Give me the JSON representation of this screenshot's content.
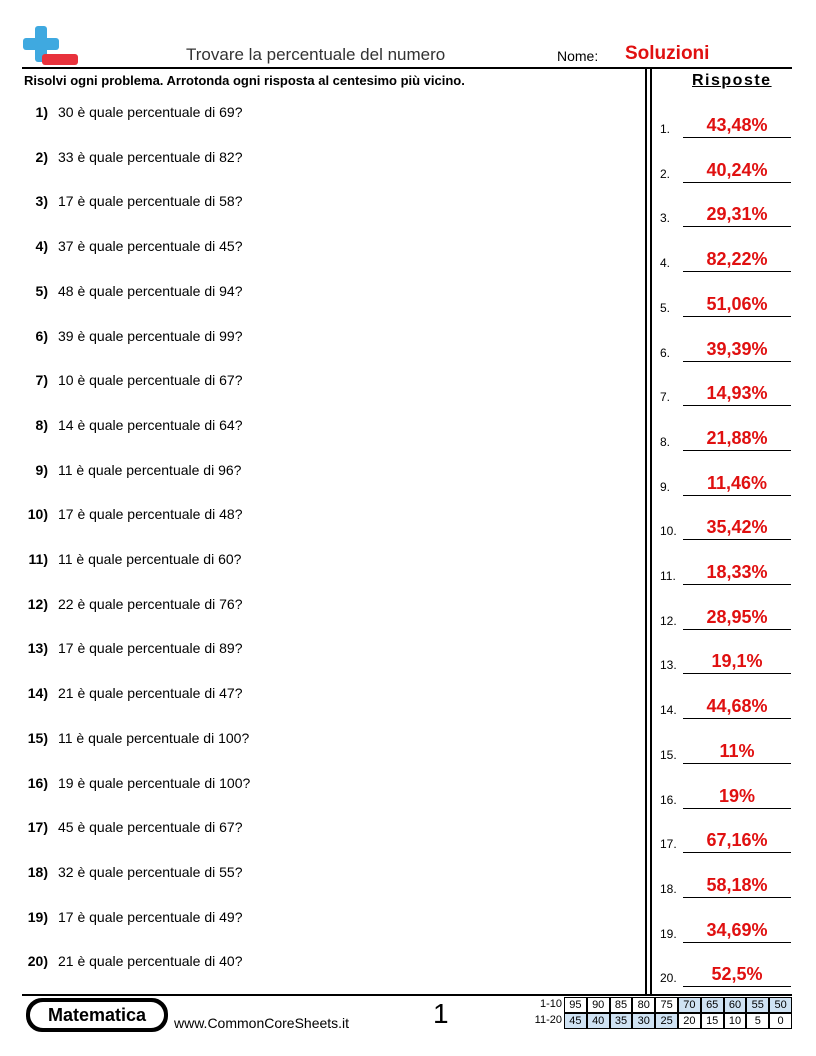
{
  "header": {
    "title": "Trovare la percentuale del numero",
    "name_label": "Nome:",
    "name_value": "Soluzioni"
  },
  "instructions": "Risolvi ogni problema. Arrotonda ogni risposta al centesimo più vicino.",
  "answers_title": "Risposte",
  "problems": [
    {
      "number": "1)",
      "text": "30 è quale percentuale di 69?"
    },
    {
      "number": "2)",
      "text": "33 è quale percentuale di 82?"
    },
    {
      "number": "3)",
      "text": "17 è quale percentuale di 58?"
    },
    {
      "number": "4)",
      "text": "37 è quale percentuale di 45?"
    },
    {
      "number": "5)",
      "text": "48 è quale percentuale di 94?"
    },
    {
      "number": "6)",
      "text": "39 è quale percentuale di 99?"
    },
    {
      "number": "7)",
      "text": "10 è quale percentuale di 67?"
    },
    {
      "number": "8)",
      "text": "14 è quale percentuale di 64?"
    },
    {
      "number": "9)",
      "text": "11 è quale percentuale di 96?"
    },
    {
      "number": "10)",
      "text": "17 è quale percentuale di 48?"
    },
    {
      "number": "11)",
      "text": "11 è quale percentuale di 60?"
    },
    {
      "number": "12)",
      "text": "22 è quale percentuale di 76?"
    },
    {
      "number": "13)",
      "text": "17 è quale percentuale di 89?"
    },
    {
      "number": "14)",
      "text": "21 è quale percentuale di 47?"
    },
    {
      "number": "15)",
      "text": "11 è quale percentuale di 100?"
    },
    {
      "number": "16)",
      "text": "19 è quale percentuale di 100?"
    },
    {
      "number": "17)",
      "text": "45 è quale percentuale di 67?"
    },
    {
      "number": "18)",
      "text": "32 è quale percentuale di 55?"
    },
    {
      "number": "19)",
      "text": "17 è quale percentuale di 49?"
    },
    {
      "number": "20)",
      "text": "21 è quale percentuale di 40?"
    }
  ],
  "answers": [
    {
      "number": "1.",
      "value": "43,48%"
    },
    {
      "number": "2.",
      "value": "40,24%"
    },
    {
      "number": "3.",
      "value": "29,31%"
    },
    {
      "number": "4.",
      "value": "82,22%"
    },
    {
      "number": "5.",
      "value": "51,06%"
    },
    {
      "number": "6.",
      "value": "39,39%"
    },
    {
      "number": "7.",
      "value": "14,93%"
    },
    {
      "number": "8.",
      "value": "21,88%"
    },
    {
      "number": "9.",
      "value": "11,46%"
    },
    {
      "number": "10.",
      "value": "35,42%"
    },
    {
      "number": "11.",
      "value": "18,33%"
    },
    {
      "number": "12.",
      "value": "28,95%"
    },
    {
      "number": "13.",
      "value": "19,1%"
    },
    {
      "number": "14.",
      "value": "44,68%"
    },
    {
      "number": "15.",
      "value": "11%"
    },
    {
      "number": "16.",
      "value": "19%"
    },
    {
      "number": "17.",
      "value": "67,16%"
    },
    {
      "number": "18.",
      "value": "58,18%"
    },
    {
      "number": "19.",
      "value": "34,69%"
    },
    {
      "number": "20.",
      "value": "52,5%"
    }
  ],
  "footer": {
    "brand": "Matematica",
    "url": "www.CommonCoreSheets.it",
    "page": "1",
    "score_rows": [
      {
        "label": "1-10",
        "cells": [
          "95",
          "90",
          "85",
          "80",
          "75",
          "70",
          "65",
          "60",
          "55",
          "50"
        ]
      },
      {
        "label": "11-20",
        "cells": [
          "45",
          "40",
          "35",
          "30",
          "25",
          "20",
          "15",
          "10",
          "5",
          "0"
        ]
      }
    ]
  }
}
